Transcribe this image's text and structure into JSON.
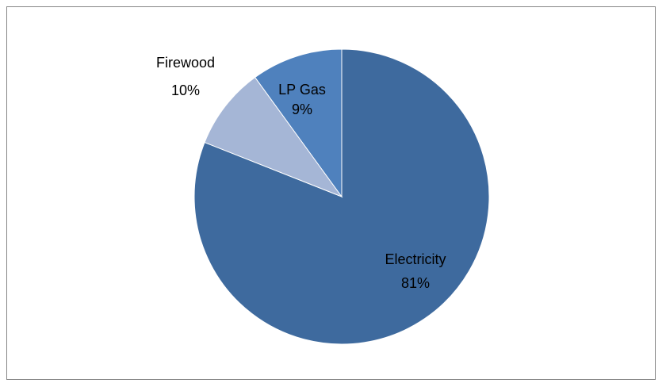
{
  "chart_data": {
    "type": "pie",
    "title": "",
    "slices": [
      {
        "name": "Electricity",
        "value": 81,
        "pct_label": "81%",
        "color": "#3E6A9E"
      },
      {
        "name": "LP Gas",
        "value": 9,
        "pct_label": "9%",
        "color": "#A5B6D6"
      },
      {
        "name": "Firewood",
        "value": 10,
        "pct_label": "10%",
        "color": "#4F81BD"
      }
    ],
    "legend": "none",
    "data_labels": "category-and-percent"
  }
}
